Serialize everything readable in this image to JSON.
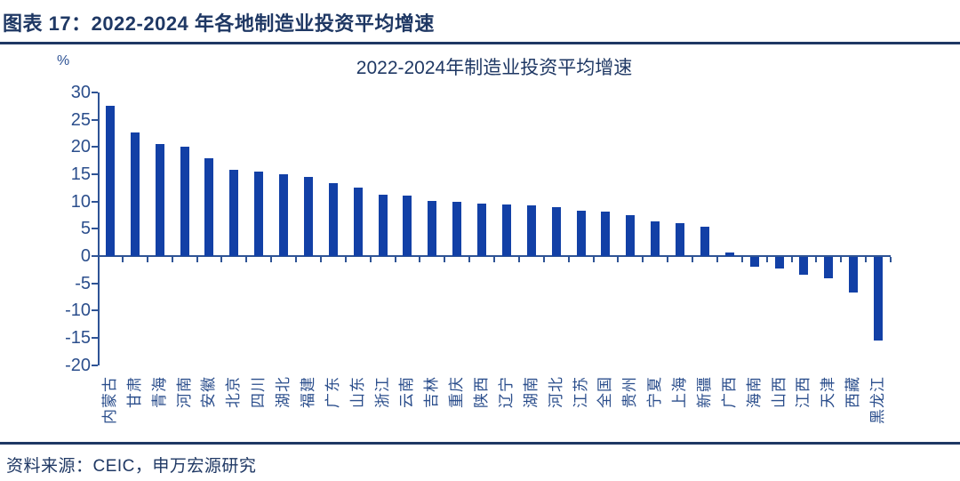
{
  "header": {
    "title": "图表 17：2022-2024 年各地制造业投资平均增速"
  },
  "footer": {
    "source": "资料来源：CEIC，申万宏源研究"
  },
  "colors": {
    "accent_navy": "#1F3864",
    "bar_blue": "#1240A6",
    "axis_blue": "#2E5395",
    "tick_label_blue": "#2B4E8C",
    "background": "#FFFFFF"
  },
  "chart_data": {
    "type": "bar",
    "title": "2022-2024年制造业投资平均增速",
    "unit": "%",
    "xlabel": "",
    "ylabel": "%",
    "ylim": [
      -20,
      30
    ],
    "yticks": [
      30,
      25,
      20,
      15,
      10,
      5,
      0,
      -5,
      -10,
      -15,
      -20
    ],
    "grid": false,
    "legend_position": "none",
    "categories": [
      "内蒙古",
      "甘肃",
      "青海",
      "河南",
      "安徽",
      "北京",
      "四川",
      "湖北",
      "福建",
      "广东",
      "山东",
      "浙江",
      "云南",
      "吉林",
      "重庆",
      "陕西",
      "辽宁",
      "湖南",
      "河北",
      "江苏",
      "全国",
      "贵州",
      "宁夏",
      "上海",
      "新疆",
      "广西",
      "海南",
      "山西",
      "江西",
      "天津",
      "西藏",
      "黑龙江"
    ],
    "values": [
      27.5,
      22.6,
      20.5,
      20.1,
      18.0,
      15.8,
      15.5,
      15.0,
      14.6,
      13.4,
      12.6,
      11.3,
      11.1,
      10.1,
      10.0,
      9.7,
      9.5,
      9.3,
      9.0,
      8.3,
      8.1,
      7.5,
      6.4,
      6.1,
      5.4,
      0.6,
      -1.8,
      -2.1,
      -3.3,
      -3.9,
      -6.5,
      -15.3
    ]
  }
}
